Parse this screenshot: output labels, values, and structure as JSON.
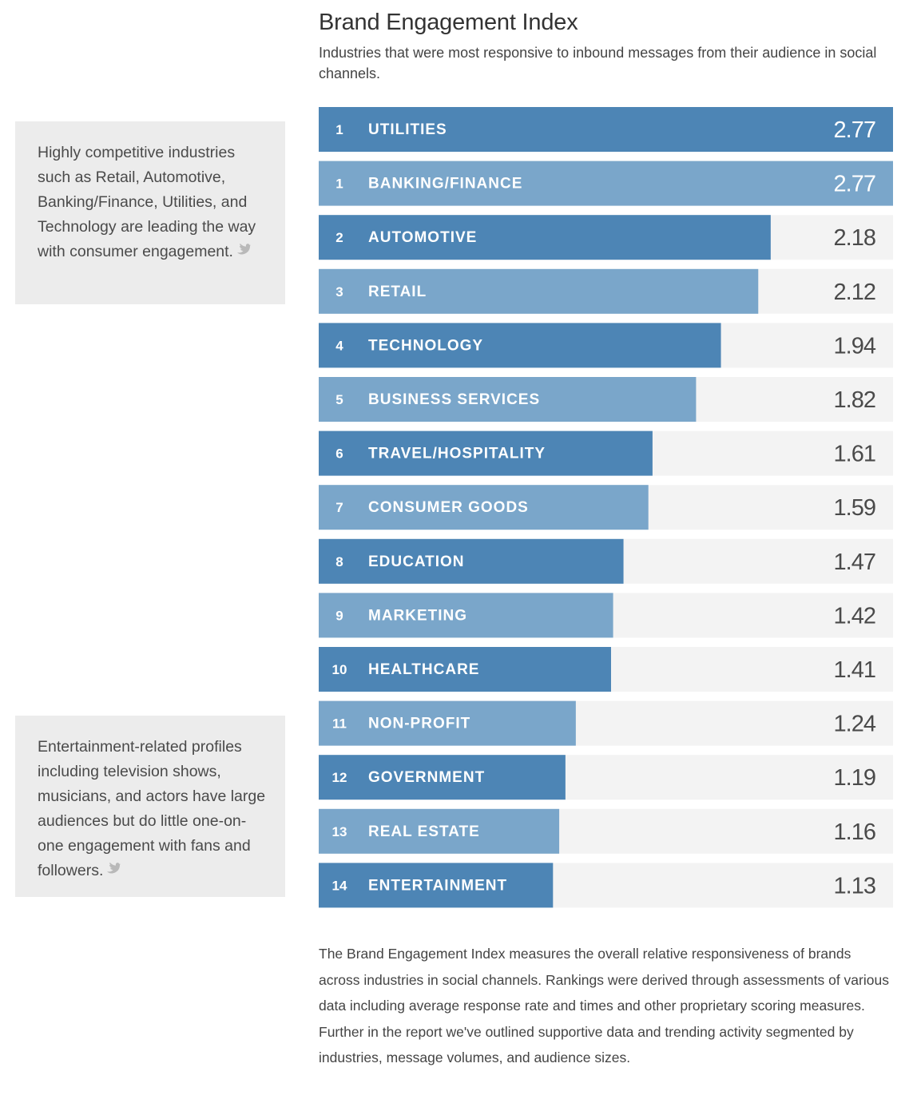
{
  "header": {
    "title": "Brand Engagement Index",
    "subtitle": "Industries that were most responsive to inbound messages from their audience in social channels."
  },
  "callouts": [
    {
      "text": "Highly competitive industries such as Retail, Automotive, Banking/Finance, Utilities, and Technology are leading the way with consumer engagement.",
      "icon": "tweet-share-icon"
    },
    {
      "text": "Entertainment-related profiles including television shows, musicians, and actors have large audiences but do little one-on-one engagement with fans and followers.",
      "icon": "tweet-share-icon"
    }
  ],
  "footnote": "The Brand Engagement Index measures the overall relative responsiveness of brands across industries in social channels. Rankings were derived through assessments of various data including average response rate and times and other proprietary scoring measures. Further in the report we've outlined supportive data and trending activity segmented by industries, message volumes, and audience sizes.",
  "colors": {
    "bar_dark": "#4d85b5",
    "bar_light": "#7aa6ca",
    "track": "#f3f3f3",
    "value_on_bar": "#ffffff",
    "value_off_bar": "#4a4a4a"
  },
  "chart_data": {
    "type": "bar",
    "orientation": "horizontal",
    "title": "Brand Engagement Index",
    "xlim": [
      0,
      2.77
    ],
    "rows": [
      {
        "rank": "1",
        "category": "UTILITIES",
        "value": 2.77,
        "value_label": "2.77"
      },
      {
        "rank": "1",
        "category": "BANKING/FINANCE",
        "value": 2.77,
        "value_label": "2.77"
      },
      {
        "rank": "2",
        "category": "AUTOMOTIVE",
        "value": 2.18,
        "value_label": "2.18"
      },
      {
        "rank": "3",
        "category": "RETAIL",
        "value": 2.12,
        "value_label": "2.12"
      },
      {
        "rank": "4",
        "category": "TECHNOLOGY",
        "value": 1.94,
        "value_label": "1.94"
      },
      {
        "rank": "5",
        "category": "BUSINESS SERVICES",
        "value": 1.82,
        "value_label": "1.82"
      },
      {
        "rank": "6",
        "category": "TRAVEL/HOSPITALITY",
        "value": 1.61,
        "value_label": "1.61"
      },
      {
        "rank": "7",
        "category": "CONSUMER GOODS",
        "value": 1.59,
        "value_label": "1.59"
      },
      {
        "rank": "8",
        "category": "EDUCATION",
        "value": 1.47,
        "value_label": "1.47"
      },
      {
        "rank": "9",
        "category": "MARKETING",
        "value": 1.42,
        "value_label": "1.42"
      },
      {
        "rank": "10",
        "category": "HEALTHCARE",
        "value": 1.41,
        "value_label": "1.41"
      },
      {
        "rank": "11",
        "category": "NON-PROFIT",
        "value": 1.24,
        "value_label": "1.24"
      },
      {
        "rank": "12",
        "category": "GOVERNMENT",
        "value": 1.19,
        "value_label": "1.19"
      },
      {
        "rank": "13",
        "category": "REAL ESTATE",
        "value": 1.16,
        "value_label": "1.16"
      },
      {
        "rank": "14",
        "category": "ENTERTAINMENT",
        "value": 1.13,
        "value_label": "1.13"
      }
    ]
  }
}
